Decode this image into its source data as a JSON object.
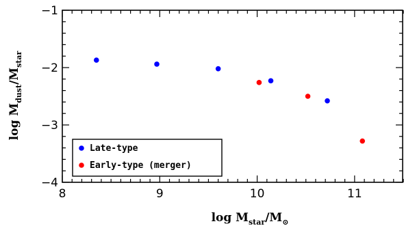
{
  "chart_data": {
    "type": "scatter",
    "xlabel": {
      "prefix": "log M",
      "sub": "star",
      "suffix": "/M",
      "sub2": "⊙"
    },
    "ylabel": {
      "prefix": "log M",
      "sub": "dust",
      "suffix": "/M",
      "sub2": "star"
    },
    "xlim": [
      8,
      11.5
    ],
    "ylim": [
      -4,
      -1
    ],
    "x_ticks": [
      8,
      9,
      10,
      11
    ],
    "x_tick_labels": [
      "8",
      "9",
      "10",
      "11"
    ],
    "y_ticks": [
      -4,
      -3,
      -2,
      -1
    ],
    "y_tick_labels": [
      "−4",
      "−3",
      "−2",
      "−1"
    ],
    "legend_placement": "bottom-left",
    "series": [
      {
        "name": "Late-type",
        "color": "#0000ff",
        "points": [
          {
            "x": 8.35,
            "y": -1.87
          },
          {
            "x": 8.97,
            "y": -1.94
          },
          {
            "x": 9.6,
            "y": -2.02
          },
          {
            "x": 10.14,
            "y": -2.23
          },
          {
            "x": 10.72,
            "y": -2.58
          }
        ]
      },
      {
        "name": "Early-type (merger)",
        "color": "#ff0000",
        "points": [
          {
            "x": 10.02,
            "y": -2.26
          },
          {
            "x": 10.52,
            "y": -2.5
          },
          {
            "x": 11.08,
            "y": -3.28
          }
        ]
      }
    ]
  }
}
